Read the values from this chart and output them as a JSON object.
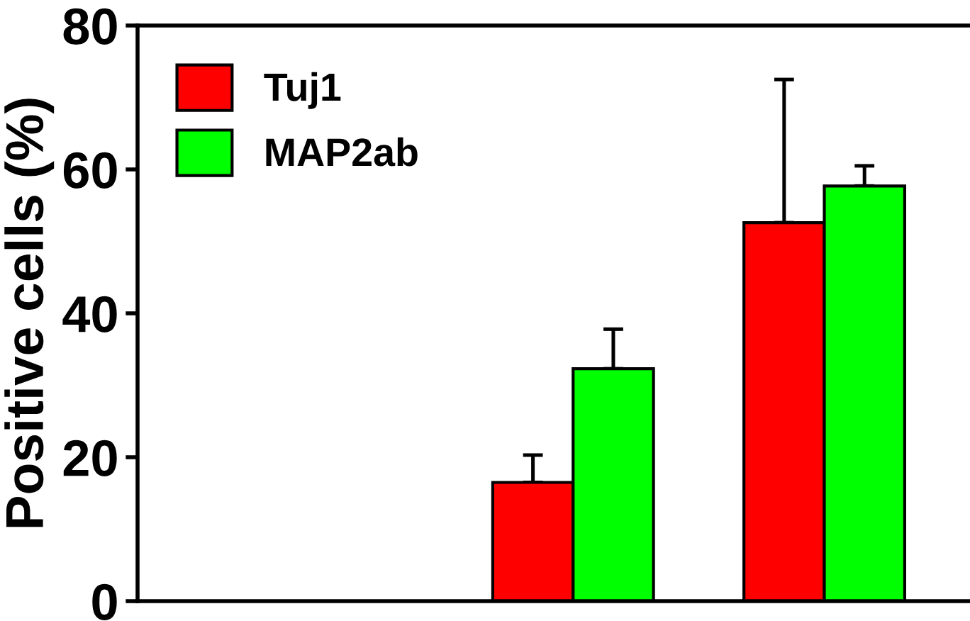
{
  "chart_data": {
    "type": "bar",
    "ylabel": "Positive cells (%)",
    "categories": [
      null,
      null,
      null
    ],
    "series": [
      {
        "name": "Tuj1",
        "color": "#ff0000",
        "values": [
          null,
          16.5,
          52.6
        ],
        "errors": [
          null,
          [
            16.5,
            20.3
          ],
          [
            52.6,
            72.5
          ]
        ]
      },
      {
        "name": "MAP2ab",
        "color": "#00ff00",
        "values": [
          null,
          32.3,
          57.7
        ],
        "errors": [
          null,
          [
            32.3,
            37.8
          ],
          [
            57.7,
            60.5
          ]
        ]
      }
    ],
    "ylim": [
      0,
      80
    ],
    "yticks": [
      0,
      20,
      40,
      60,
      80
    ],
    "grid": false,
    "legend": "top left",
    "tick_labels": "y"
  }
}
